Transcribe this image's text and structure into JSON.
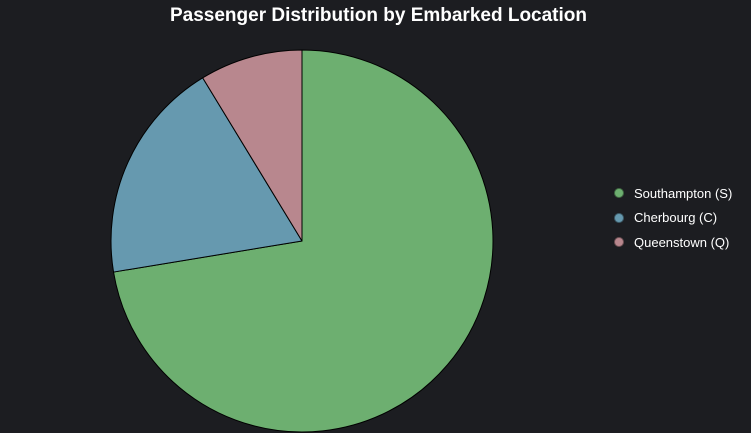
{
  "chart_data": {
    "type": "pie",
    "title": "Passenger Distribution by Embarked Location",
    "categories": [
      "Southampton (S)",
      "Cherbourg (C)",
      "Queenstown (Q)"
    ],
    "values": [
      72.4,
      18.9,
      8.7
    ],
    "colors": [
      "#6daf70",
      "#6699af",
      "#b8878e"
    ],
    "legend_position": "right",
    "start_angle": "12 o'clock",
    "direction": "clockwise"
  }
}
